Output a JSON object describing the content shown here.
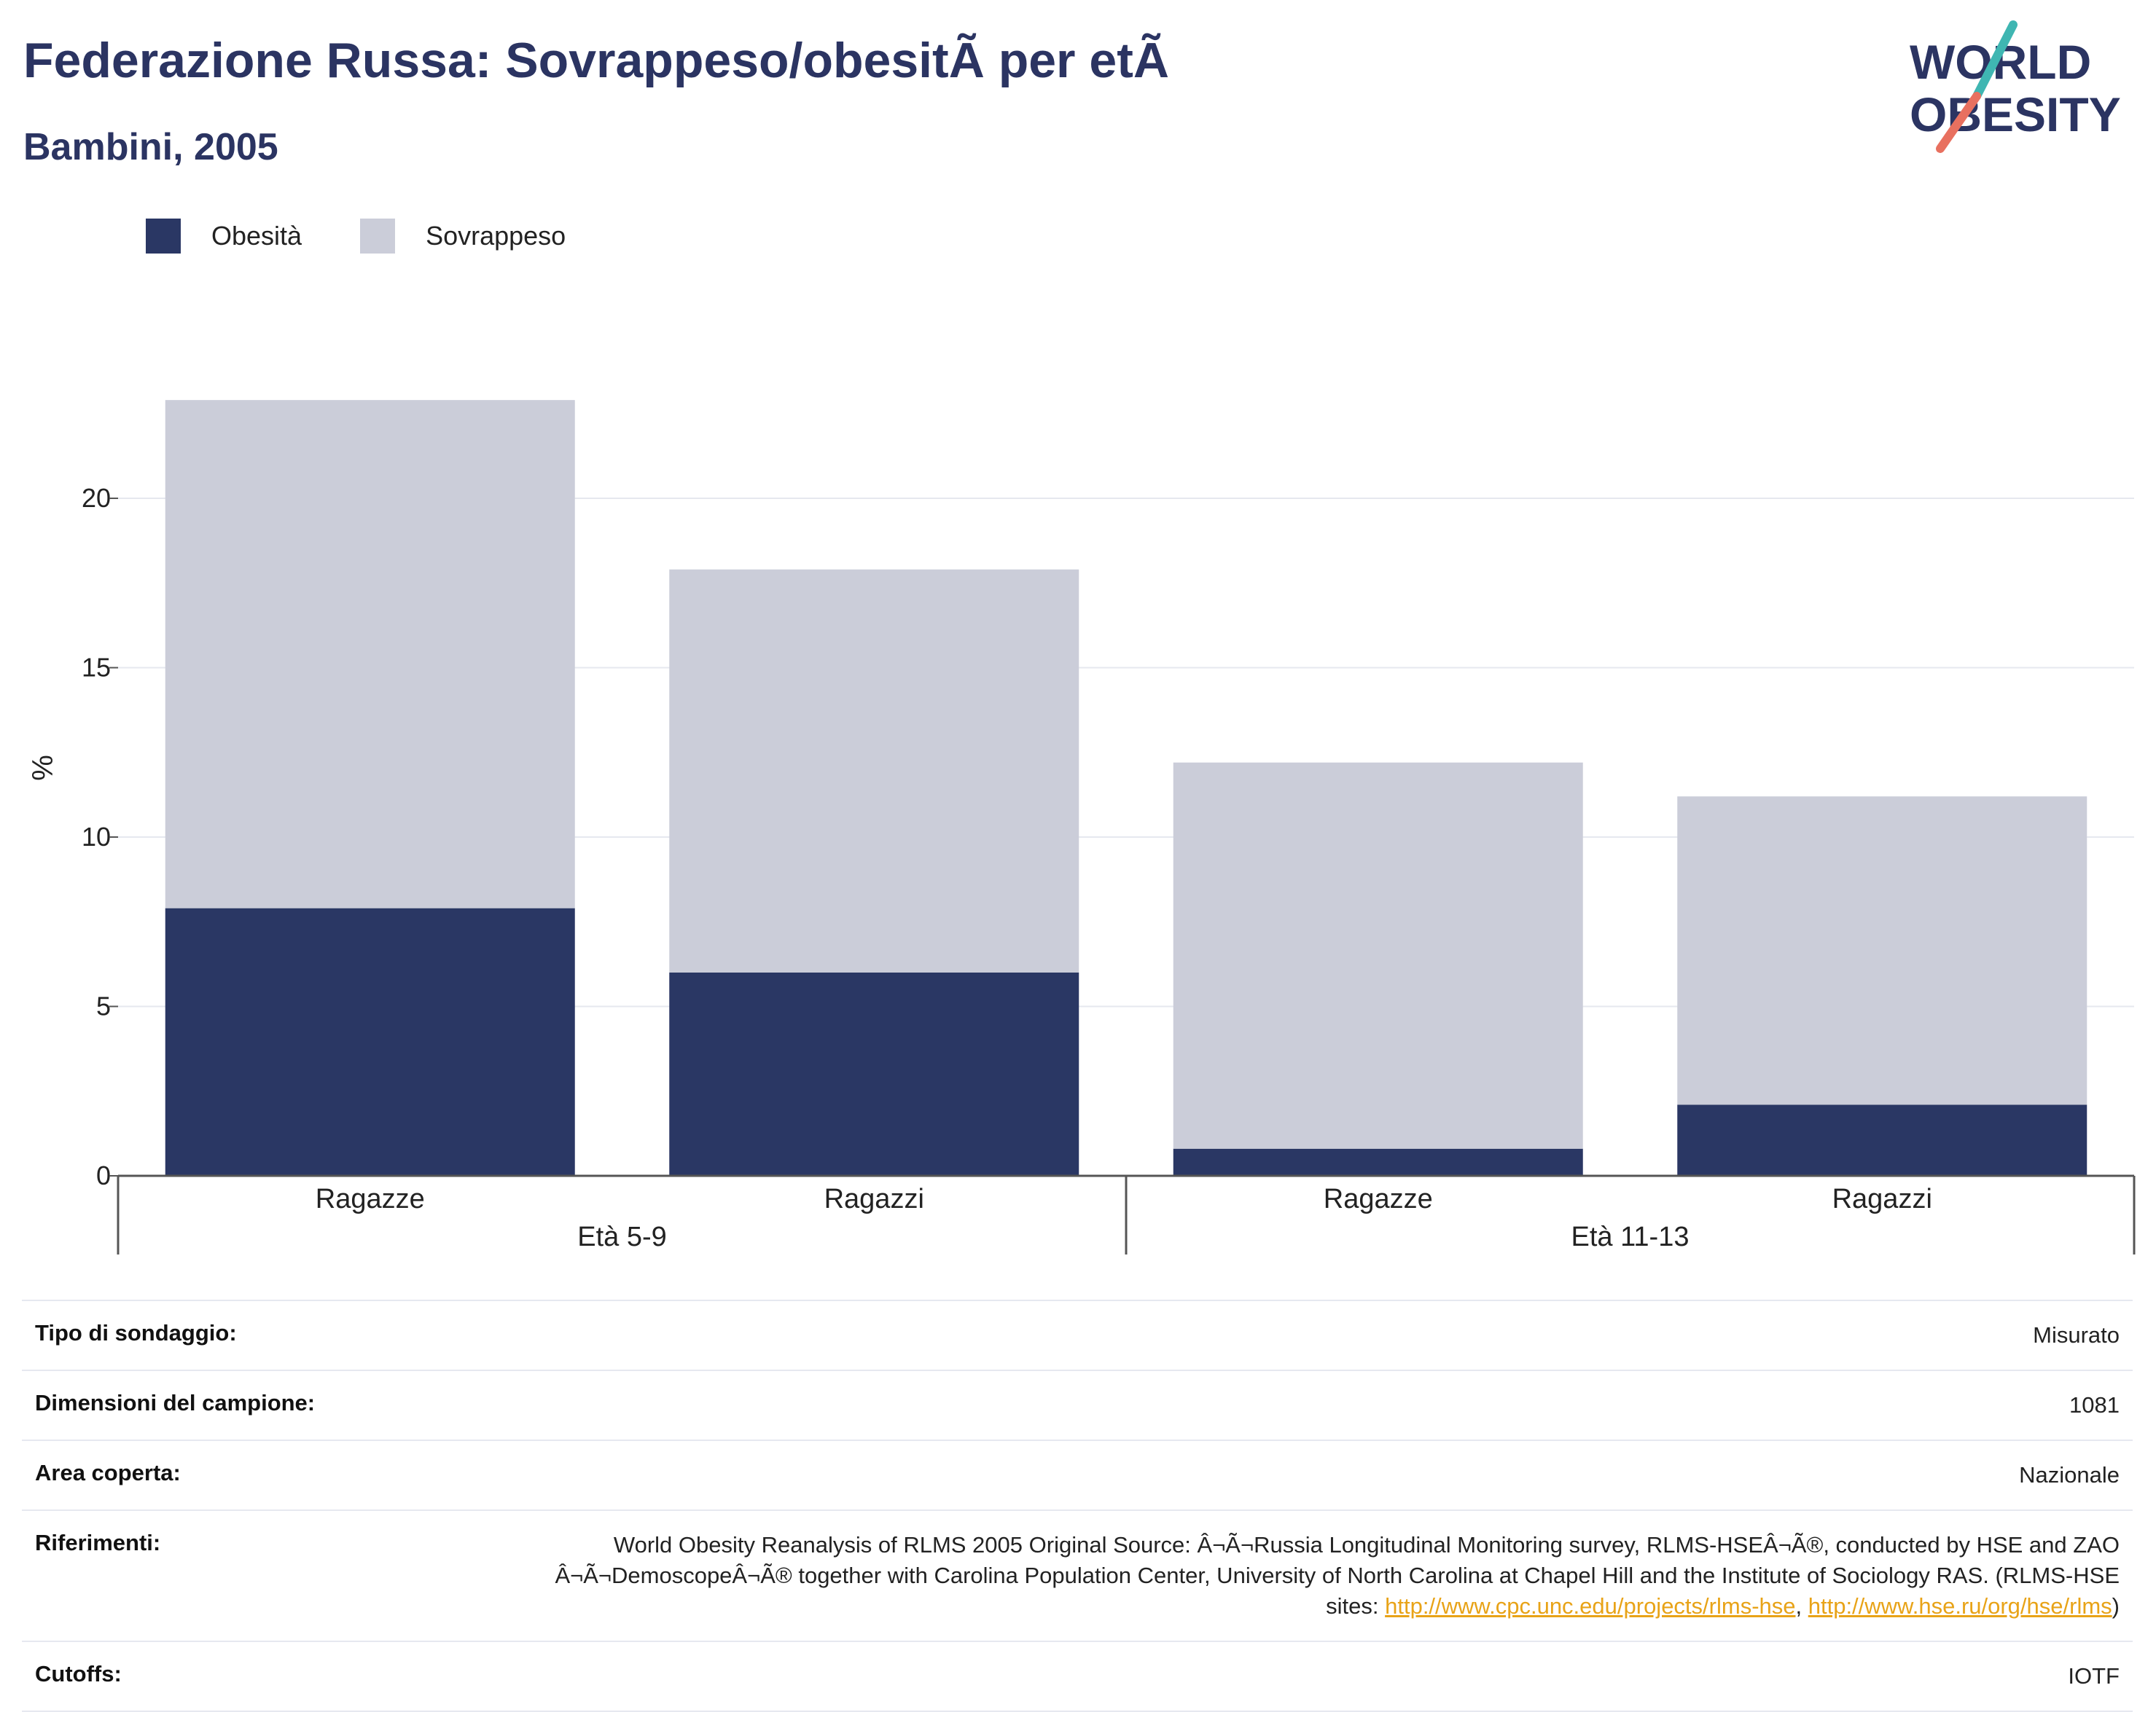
{
  "header": {
    "title": "Federazione Russa: Sovrappeso/obesitÃ  per etÃ",
    "subtitle": "Bambini, 2005"
  },
  "logo": {
    "line1": "WORLD",
    "line2": "OBESITY",
    "text_color": "#2b3462",
    "accent_teal": "#3fb6b2",
    "accent_coral": "#e8705f"
  },
  "colors": {
    "obesity": "#2a3764",
    "overweight": "#cbcdd9",
    "grid": "#e6e8ef",
    "axis": "#555555"
  },
  "legend": [
    {
      "label": "Obesità",
      "color": "#2a3764"
    },
    {
      "label": "Sovrappeso",
      "color": "#cbcdd9"
    }
  ],
  "chart_data": {
    "type": "bar",
    "stacked": true,
    "ylabel": "%",
    "ylim": [
      0,
      24
    ],
    "yticks": [
      0,
      5,
      10,
      15,
      20
    ],
    "grid": true,
    "legend_position": "top-left",
    "categories": [
      "Ragazze",
      "Ragazzi",
      "Ragazze",
      "Ragazzi"
    ],
    "groups": [
      {
        "label": "Età 5-9",
        "categories": [
          0,
          1
        ]
      },
      {
        "label": "Età 11-13",
        "categories": [
          2,
          3
        ]
      }
    ],
    "series": [
      {
        "name": "Obesità",
        "values": [
          7.9,
          6.0,
          0.8,
          2.1
        ]
      },
      {
        "name": "Sovrappeso",
        "values": [
          15.0,
          11.9,
          11.4,
          9.1
        ]
      }
    ],
    "totals": [
      22.9,
      17.9,
      12.2,
      11.2
    ]
  },
  "meta": {
    "rows": [
      {
        "label": "Tipo di sondaggio:",
        "value": "Misurato"
      },
      {
        "label": "Dimensioni del campione:",
        "value": "1081"
      },
      {
        "label": "Area coperta:",
        "value": "Nazionale"
      }
    ],
    "references": {
      "label": "Riferimenti:",
      "text": "World Obesity Reanalysis of RLMS 2005 Original Source: Â¬Ã¬Russia Longitudinal Monitoring survey, RLMS-HSEÂ¬Ã®, conducted by HSE and ZAO Â¬Ã¬DemoscopeÂ¬Ã® together with Carolina Population Center, University of North Carolina at Chapel Hill and the Institute of Sociology RAS. (RLMS-HSE sites: ",
      "link1": "http://www.cpc.unc.edu/projects/rlms-hse",
      "separator": ", ",
      "link2": "http://www.hse.ru/org/hse/rlms",
      "closing": ")"
    },
    "cutoffs": {
      "label": "Cutoffs:",
      "value": "IOTF"
    }
  }
}
